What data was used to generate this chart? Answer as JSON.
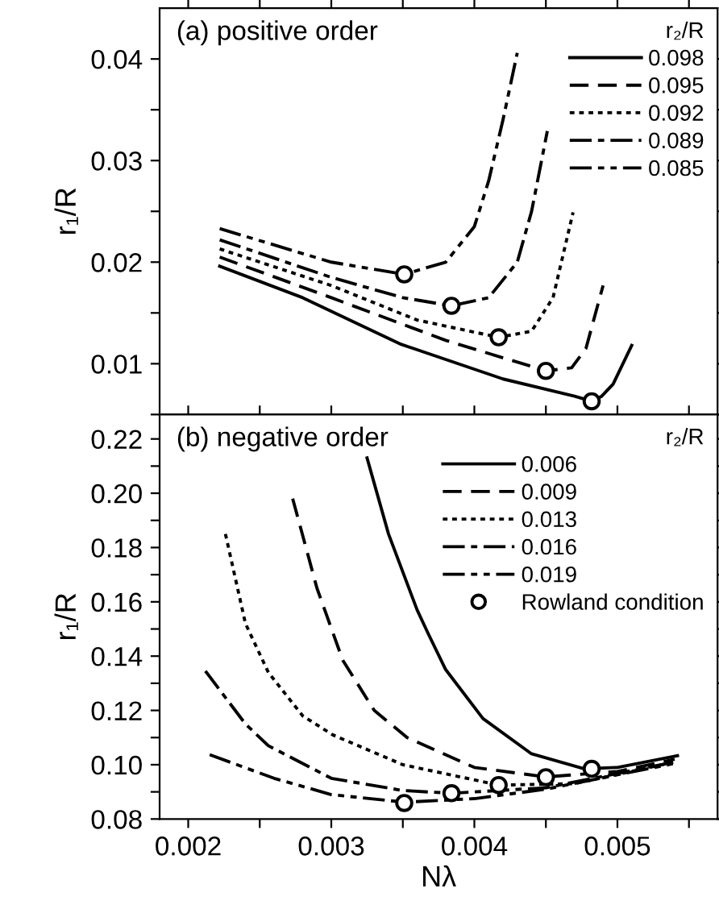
{
  "chart_data": [
    {
      "type": "line",
      "annotations": [
        "(a) positive order"
      ],
      "ylabel": "r₁/R",
      "legend_title": "r₂/R",
      "legend": "top right",
      "grid": false,
      "tick_labels": "y",
      "xlim": [
        0.0018,
        0.0057
      ],
      "ylim": [
        0.005,
        0.045
      ],
      "xticks": [
        {
          "value": 0.002,
          "label": null
        },
        {
          "value": 0.0025,
          "label": null
        },
        {
          "value": 0.003,
          "label": null
        },
        {
          "value": 0.0035,
          "label": null
        },
        {
          "value": 0.004,
          "label": null
        },
        {
          "value": 0.0045,
          "label": null
        },
        {
          "value": 0.005,
          "label": null
        },
        {
          "value": 0.0055,
          "label": null
        }
      ],
      "yticks": [
        {
          "value": 0.005,
          "label": null
        },
        0.01,
        {
          "value": 0.015,
          "label": null
        },
        0.02,
        {
          "value": 0.025,
          "label": null
        },
        0.03,
        {
          "value": 0.035,
          "label": null
        },
        0.04
      ],
      "series": [
        {
          "name": "0.098",
          "color": "#000000",
          "line_style": "solid",
          "marker": "none",
          "x": [
            0.00222,
            0.0028,
            0.00349,
            0.0042,
            0.0047,
            0.00482,
            0.00489,
            0.00497,
            0.0051
          ],
          "values": [
            0.0196,
            0.0165,
            0.0119,
            0.0085,
            0.0068,
            0.0063,
            0.0068,
            0.008,
            0.0118
          ]
        },
        {
          "name": "0.095",
          "color": "#000000",
          "line_style": "dashed",
          "marker": "none",
          "x": [
            0.00222,
            0.003,
            0.0038,
            0.0045,
            0.00468,
            0.00478,
            0.0049
          ],
          "values": [
            0.0205,
            0.0165,
            0.0123,
            0.0093,
            0.0096,
            0.0115,
            0.0177
          ]
        },
        {
          "name": "0.092",
          "color": "#000000",
          "line_style": "dotted",
          "marker": "none",
          "x": [
            0.00222,
            0.003,
            0.0036,
            0.00417,
            0.0044,
            0.00455,
            0.00469
          ],
          "values": [
            0.0213,
            0.0177,
            0.0143,
            0.0126,
            0.0132,
            0.0165,
            0.0249
          ]
        },
        {
          "name": "0.089",
          "color": "#000000",
          "line_style": "dashdot",
          "marker": "none",
          "x": [
            0.00222,
            0.003,
            0.0035,
            0.00384,
            0.0041,
            0.0043,
            0.0044,
            0.00451
          ],
          "values": [
            0.0222,
            0.0185,
            0.0165,
            0.0157,
            0.0165,
            0.02,
            0.025,
            0.0329
          ]
        },
        {
          "name": "0.085",
          "color": "#000000",
          "line_style": "dashdotdot",
          "marker": "none",
          "x": [
            0.00222,
            0.003,
            0.00351,
            0.0038,
            0.004,
            0.0041,
            0.0042,
            0.0043
          ],
          "values": [
            0.0233,
            0.02,
            0.0188,
            0.02,
            0.0235,
            0.028,
            0.034,
            0.0406
          ]
        },
        {
          "type": "scatter",
          "color": "#000000",
          "marker": "circle",
          "x": [
            0.00482,
            0.0045,
            0.00417,
            0.00384,
            0.00351
          ],
          "values": [
            0.0063,
            0.0093,
            0.0126,
            0.0157,
            0.0188
          ]
        }
      ]
    },
    {
      "type": "line",
      "annotations": [
        "(b) negative order"
      ],
      "xlabel": "Nλ",
      "ylabel": "r₁/R",
      "legend_title": "r₂/R",
      "legend": "top right",
      "grid": false,
      "xlim": [
        0.0018,
        0.0057
      ],
      "ylim": [
        0.08,
        0.229
      ],
      "xticks": [
        0.002,
        {
          "value": 0.0025,
          "label": null
        },
        0.003,
        {
          "value": 0.0035,
          "label": null
        },
        0.004,
        {
          "value": 0.0045,
          "label": null
        },
        0.005,
        {
          "value": 0.0055,
          "label": null
        }
      ],
      "yticks": [
        0.08,
        {
          "value": 0.09,
          "label": null
        },
        "0.10",
        {
          "value": 0.11,
          "label": null
        },
        0.12,
        {
          "value": 0.13,
          "label": null
        },
        0.14,
        {
          "value": 0.15,
          "label": null
        },
        0.16,
        {
          "value": 0.17,
          "label": null
        },
        0.18,
        {
          "value": 0.19,
          "label": null
        },
        "0.20",
        {
          "value": 0.21,
          "label": null
        },
        0.22
      ],
      "series": [
        {
          "name": "0.006",
          "color": "#000000",
          "line_style": "solid",
          "marker": "none",
          "x": [
            0.00325,
            0.0034,
            0.0036,
            0.00368,
            0.0038,
            0.00406,
            0.0044,
            0.00477,
            0.005,
            0.00542
          ],
          "values": [
            0.213,
            0.185,
            0.157,
            0.148,
            0.135,
            0.117,
            0.104,
            0.0985,
            0.099,
            0.1033
          ]
        },
        {
          "name": "0.009",
          "color": "#000000",
          "line_style": "dashed",
          "marker": "none",
          "x": [
            0.00273,
            0.0029,
            0.00308,
            0.0033,
            0.00353,
            0.004,
            0.0045,
            0.005,
            0.0054
          ],
          "values": [
            0.198,
            0.165,
            0.1385,
            0.12,
            0.11,
            0.099,
            0.0955,
            0.0975,
            0.102
          ]
        },
        {
          "name": "0.013",
          "color": "#000000",
          "line_style": "dotted",
          "marker": "none",
          "x": [
            0.00226,
            0.0024,
            0.00256,
            0.0028,
            0.00301,
            0.0035,
            0.00417,
            0.0047,
            0.0054
          ],
          "values": [
            0.185,
            0.152,
            0.134,
            0.118,
            0.111,
            0.1,
            0.0925,
            0.093,
            0.101
          ]
        },
        {
          "name": "0.016",
          "color": "#000000",
          "line_style": "dashdot",
          "marker": "none",
          "x": [
            0.00212,
            0.0024,
            0.00256,
            0.003,
            0.0035,
            0.00384,
            0.0045,
            0.0054
          ],
          "values": [
            0.1345,
            0.115,
            0.107,
            0.095,
            0.0905,
            0.0895,
            0.0915,
            0.101
          ]
        },
        {
          "name": "0.019",
          "color": "#000000",
          "line_style": "dashdotdot",
          "marker": "none",
          "x": [
            0.00215,
            0.0026,
            0.003,
            0.00351,
            0.004,
            0.0045,
            0.0054
          ],
          "values": [
            0.1037,
            0.095,
            0.089,
            0.0862,
            0.0875,
            0.091,
            0.1005
          ]
        },
        {
          "type": "scatter",
          "name": "Rowland condition",
          "color": "#000000",
          "marker": "circle",
          "x": [
            0.00482,
            0.0045,
            0.00417,
            0.00384,
            0.00351
          ],
          "values": [
            0.0985,
            0.0954,
            0.0925,
            0.0895,
            0.0859
          ]
        }
      ]
    }
  ]
}
